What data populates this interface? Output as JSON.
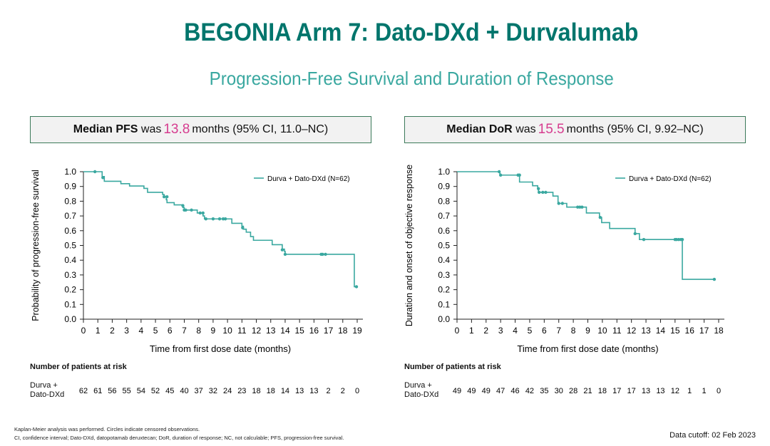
{
  "title": "BEGONIA Arm 7: Dato-DXd + Durvalumab",
  "subtitle": "Progression-Free Survival and Duration of Response",
  "pfs_box": {
    "label": "Median PFS",
    "was": "was",
    "value": "13.8",
    "rest": "months (95% CI, 11.0–NC)"
  },
  "dor_box": {
    "label": "Median DoR",
    "was": "was",
    "value": "15.5",
    "rest": "months (95% CI, 9.92–NC)"
  },
  "colors": {
    "line": "#3aa8a0",
    "title": "#00756c",
    "highlight": "#d63c8f"
  },
  "chart_data": [
    {
      "type": "line",
      "subtype": "kaplan-meier step",
      "ylabel": "Probability of progression-free survival",
      "xlabel": "Time from first dose date (months)",
      "xlim": [
        0,
        19
      ],
      "ylim": [
        0,
        1
      ],
      "xticks": [
        "0",
        "1",
        "2",
        "3",
        "4",
        "5",
        "6",
        "7",
        "8",
        "9",
        "10",
        "11",
        "12",
        "13",
        "14",
        "15",
        "16",
        "17",
        "18",
        "19"
      ],
      "yticks": [
        "0.0",
        "0.1",
        "0.2",
        "0.3",
        "0.4",
        "0.5",
        "0.6",
        "0.7",
        "0.8",
        "0.9",
        "1.0"
      ],
      "legend": "top-right",
      "series": [
        {
          "name": "Durva + Dato-DXd (N=62)",
          "steps": [
            [
              0,
              1.0
            ],
            [
              1.3,
              0.967
            ],
            [
              1.45,
              0.935
            ],
            [
              2.6,
              0.919
            ],
            [
              3.2,
              0.903
            ],
            [
              4.2,
              0.887
            ],
            [
              4.45,
              0.86
            ],
            [
              5.5,
              0.845
            ],
            [
              5.6,
              0.83
            ],
            [
              5.75,
              0.81
            ],
            [
              5.8,
              0.79
            ],
            [
              6.3,
              0.775
            ],
            [
              6.9,
              0.757
            ],
            [
              7.0,
              0.74
            ],
            [
              7.9,
              0.72
            ],
            [
              8.3,
              0.7
            ],
            [
              8.4,
              0.68
            ],
            [
              10.3,
              0.65
            ],
            [
              11.0,
              0.63
            ],
            [
              11.1,
              0.61
            ],
            [
              11.3,
              0.59
            ],
            [
              11.6,
              0.56
            ],
            [
              11.8,
              0.535
            ],
            [
              13.1,
              0.505
            ],
            [
              13.8,
              0.475
            ],
            [
              13.95,
              0.46
            ],
            [
              14.0,
              0.44
            ],
            [
              18.8,
              0.22
            ],
            [
              18.95,
              0.22
            ]
          ],
          "censored": [
            [
              0.8,
              1.0
            ],
            [
              1.35,
              0.96
            ],
            [
              5.6,
              0.83
            ],
            [
              5.8,
              0.83
            ],
            [
              6.9,
              0.77
            ],
            [
              7.0,
              0.74
            ],
            [
              7.1,
              0.74
            ],
            [
              7.5,
              0.74
            ],
            [
              8.1,
              0.72
            ],
            [
              8.3,
              0.72
            ],
            [
              8.5,
              0.68
            ],
            [
              9.0,
              0.68
            ],
            [
              9.45,
              0.68
            ],
            [
              9.7,
              0.68
            ],
            [
              9.85,
              0.68
            ],
            [
              11.05,
              0.62
            ],
            [
              13.8,
              0.47
            ],
            [
              14.0,
              0.44
            ],
            [
              16.5,
              0.44
            ],
            [
              16.6,
              0.44
            ],
            [
              16.8,
              0.44
            ],
            [
              18.95,
              0.22
            ]
          ]
        }
      ],
      "risk": {
        "header": "Number of patients at risk",
        "label": [
          "Durva +",
          "Dato-DXd"
        ],
        "values": [
          "62",
          "61",
          "56",
          "55",
          "54",
          "52",
          "45",
          "40",
          "37",
          "32",
          "24",
          "23",
          "18",
          "18",
          "14",
          "13",
          "13",
          "2",
          "2",
          "0"
        ]
      }
    },
    {
      "type": "line",
      "subtype": "kaplan-meier step",
      "ylabel": "Duration and onset of objective response",
      "xlabel": "Time from first dose date (months)",
      "xlim": [
        0,
        18
      ],
      "ylim": [
        0,
        1
      ],
      "xticks": [
        "0",
        "1",
        "2",
        "3",
        "4",
        "5",
        "6",
        "7",
        "8",
        "9",
        "10",
        "11",
        "12",
        "13",
        "14",
        "15",
        "16",
        "17",
        "18"
      ],
      "yticks": [
        "0.0",
        "0.1",
        "0.2",
        "0.3",
        "0.4",
        "0.5",
        "0.6",
        "0.7",
        "0.8",
        "0.9",
        "1.0"
      ],
      "legend": "top-right",
      "series": [
        {
          "name": "Durva + Dato-DXd (N=62)",
          "steps": [
            [
              0,
              1.0
            ],
            [
              2.95,
              0.977
            ],
            [
              4.3,
              0.93
            ],
            [
              5.2,
              0.905
            ],
            [
              5.55,
              0.885
            ],
            [
              5.6,
              0.86
            ],
            [
              6.6,
              0.835
            ],
            [
              6.95,
              0.785
            ],
            [
              7.55,
              0.76
            ],
            [
              8.9,
              0.72
            ],
            [
              9.8,
              0.69
            ],
            [
              9.95,
              0.655
            ],
            [
              10.5,
              0.615
            ],
            [
              12.25,
              0.58
            ],
            [
              12.55,
              0.54
            ],
            [
              15.5,
              0.27
            ],
            [
              17.7,
              0.27
            ]
          ],
          "censored": [
            [
              2.9,
              1.0
            ],
            [
              3.0,
              0.977
            ],
            [
              4.2,
              0.977
            ],
            [
              4.3,
              0.977
            ],
            [
              5.6,
              0.885
            ],
            [
              5.65,
              0.86
            ],
            [
              5.9,
              0.86
            ],
            [
              6.1,
              0.86
            ],
            [
              7.0,
              0.785
            ],
            [
              7.25,
              0.785
            ],
            [
              8.3,
              0.76
            ],
            [
              8.45,
              0.76
            ],
            [
              8.6,
              0.76
            ],
            [
              9.85,
              0.69
            ],
            [
              12.25,
              0.58
            ],
            [
              12.85,
              0.54
            ],
            [
              15.0,
              0.54
            ],
            [
              15.1,
              0.54
            ],
            [
              15.25,
              0.54
            ],
            [
              15.4,
              0.54
            ],
            [
              15.5,
              0.54
            ],
            [
              17.7,
              0.27
            ]
          ]
        }
      ],
      "risk": {
        "header": "Number of patients at risk",
        "label": [
          "Durva +",
          "Dato-DXd"
        ],
        "values": [
          "49",
          "49",
          "49",
          "47",
          "46",
          "42",
          "35",
          "30",
          "28",
          "21",
          "18",
          "17",
          "17",
          "13",
          "13",
          "12",
          "1",
          "1",
          "0"
        ]
      }
    }
  ],
  "footnotes": [
    "Kaplan-Meier analysis was performed. Circles indicate censored observations.",
    "CI, confidence interval; Dato-DXd, datopotamab deruxtecan; DoR, duration of response; NC, not calculable; PFS, progression-free survival."
  ],
  "cutoff": "Data cutoff: 02 Feb 2023"
}
